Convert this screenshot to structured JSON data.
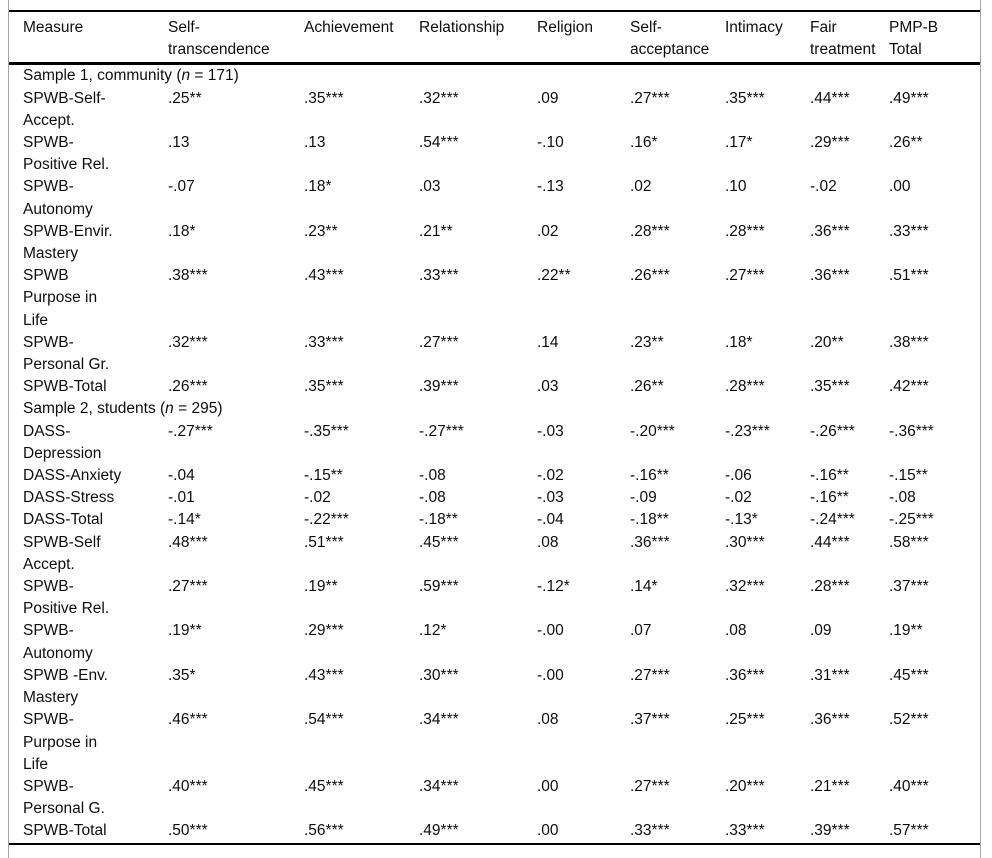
{
  "table": {
    "columns": [
      "Measure",
      "Self-\ntranscendence",
      "Achievement",
      "Relationship",
      "Religion",
      "Self-\nacceptance",
      "Intimacy",
      "Fair\ntreatment",
      "PMP-B\nTotal"
    ],
    "sections": [
      {
        "heading": {
          "prefix": "Sample 1, community (",
          "n": "n",
          "suffix": " = 171)"
        },
        "rows": [
          {
            "label": "SPWB-Self-\nAccept.",
            "values": [
              ".25**",
              ".35***",
              ".32***",
              ".09",
              ".27***",
              ".35***",
              ".44***",
              ".49***"
            ]
          },
          {
            "label": "SPWB-\nPositive Rel.",
            "values": [
              ".13",
              ".13",
              ".54***",
              "-.10",
              ".16*",
              ".17*",
              ".29***",
              ".26**"
            ]
          },
          {
            "label": "SPWB-\nAutonomy",
            "values": [
              "-.07",
              ".18*",
              ".03",
              "-.13",
              ".02",
              ".10",
              "-.02",
              ".00"
            ]
          },
          {
            "label": "SPWB-Envir.\nMastery",
            "values": [
              ".18*",
              ".23**",
              ".21**",
              ".02",
              ".28***",
              ".28***",
              ".36***",
              ".33***"
            ]
          },
          {
            "label": "SPWB\nPurpose in\nLife",
            "values": [
              ".38***",
              ".43***",
              ".33***",
              ".22**",
              ".26***",
              ".27***",
              ".36***",
              ".51***"
            ]
          },
          {
            "label": "SPWB-\nPersonal Gr.",
            "values": [
              ".32***",
              ".33***",
              ".27***",
              ".14",
              ".23**",
              ".18*",
              ".20**",
              ".38***"
            ]
          },
          {
            "label": "SPWB-Total",
            "values": [
              ".26***",
              ".35***",
              ".39***",
              ".03",
              ".26**",
              ".28***",
              ".35***",
              ".42***"
            ]
          }
        ]
      },
      {
        "heading": {
          "prefix": "Sample 2, students (",
          "n": "n",
          "suffix": " = 295)"
        },
        "rows": [
          {
            "label": "DASS-\nDepression",
            "values": [
              "-.27***",
              "-.35***",
              "-.27***",
              "-.03",
              "-.20***",
              "-.23***",
              "-.26***",
              "-.36***"
            ]
          },
          {
            "label": "DASS-Anxiety",
            "values": [
              "-.04",
              "-.15**",
              "-.08",
              "-.02",
              "-.16**",
              "-.06",
              "-.16**",
              "-.15**"
            ]
          },
          {
            "label": "DASS-Stress",
            "values": [
              "-.01",
              "-.02",
              "-.08",
              "-.03",
              "-.09",
              "-.02",
              "-.16**",
              "-.08"
            ]
          },
          {
            "label": "DASS-Total",
            "values": [
              "-.14*",
              "-.22***",
              "-.18**",
              "-.04",
              "-.18**",
              "-.13*",
              "-.24***",
              "-.25***"
            ]
          },
          {
            "label": "SPWB-Self\nAccept.",
            "values": [
              ".48***",
              ".51***",
              ".45***",
              ".08",
              ".36***",
              ".30***",
              ".44***",
              ".58***"
            ]
          },
          {
            "label": "SPWB-\nPositive Rel.",
            "values": [
              ".27***",
              ".19**",
              ".59***",
              "-.12*",
              ".14*",
              ".32***",
              ".28***",
              ".37***"
            ]
          },
          {
            "label": "SPWB-\nAutonomy",
            "values": [
              ".19**",
              ".29***",
              ".12*",
              "-.00",
              ".07",
              ".08",
              ".09",
              ".19**"
            ]
          },
          {
            "label": "SPWB -Env.\nMastery",
            "values": [
              ".35*",
              ".43***",
              ".30***",
              "-.00",
              ".27***",
              ".36***",
              ".31***",
              ".45***"
            ]
          },
          {
            "label": "SPWB-\nPurpose in\nLife",
            "values": [
              ".46***",
              ".54***",
              ".34***",
              ".08",
              ".37***",
              ".25***",
              ".36***",
              ".52***"
            ]
          },
          {
            "label": "SPWB-\nPersonal G.",
            "values": [
              ".40***",
              ".45***",
              ".34***",
              ".00",
              ".27***",
              ".20***",
              ".21***",
              ".40***"
            ]
          },
          {
            "label": "SPWB-Total",
            "values": [
              ".50***",
              ".56***",
              ".49***",
              ".00",
              ".33***",
              ".33***",
              ".39***",
              ".57***"
            ]
          }
        ]
      }
    ],
    "colors": {
      "rule": "#000000",
      "frame_border": "#a6a6a6",
      "text": "#0e0e0e",
      "background": "#ffffff"
    }
  }
}
